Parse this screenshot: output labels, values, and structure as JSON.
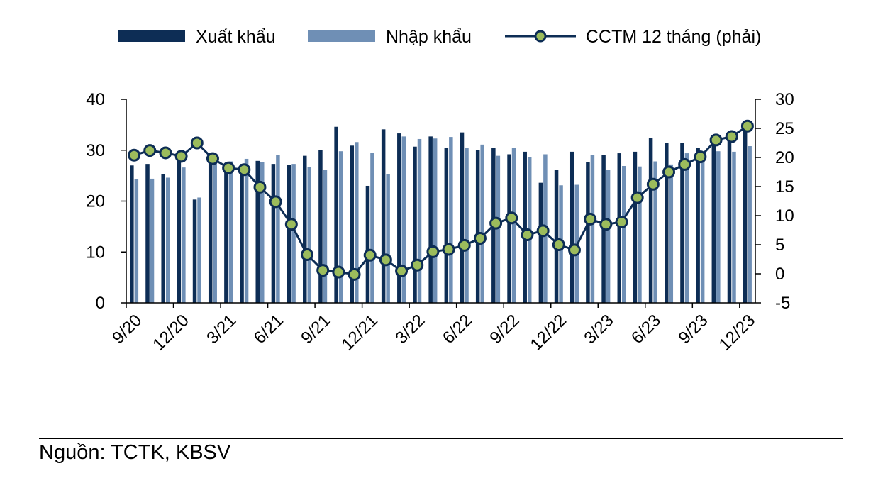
{
  "source_note": "Nguồn: TCTK, KBSV",
  "colors": {
    "export": "#0d2d55",
    "import": "#6f8fb5",
    "line": "#0d2d55",
    "marker_fill": "#9cbc5c",
    "axis": "#000000"
  },
  "chart_data": {
    "type": "bar",
    "legend_position": "top",
    "grid": false,
    "x_tick_labels": [
      "9/20",
      "12/20",
      "3/21",
      "6/21",
      "9/21",
      "12/21",
      "3/22",
      "6/22",
      "9/22",
      "12/22",
      "3/23",
      "6/23",
      "9/23",
      "12/23"
    ],
    "x_tick_every": 3,
    "categories": [
      "9/20",
      "10/20",
      "11/20",
      "12/20",
      "1/21",
      "2/21",
      "3/21",
      "4/21",
      "5/21",
      "6/21",
      "7/21",
      "8/21",
      "9/21",
      "10/21",
      "11/21",
      "12/21",
      "1/22",
      "2/22",
      "3/22",
      "4/22",
      "5/22",
      "6/22",
      "7/22",
      "8/22",
      "9/22",
      "10/22",
      "11/22",
      "12/22",
      "1/23",
      "2/23",
      "3/23",
      "4/23",
      "5/23",
      "6/23",
      "7/23",
      "8/23",
      "9/23",
      "10/23",
      "11/23",
      "12/23"
    ],
    "y_left": {
      "min": 0,
      "max": 40,
      "ticks": [
        0,
        10,
        20,
        30,
        40
      ]
    },
    "y_right": {
      "min": -5,
      "max": 30,
      "ticks": [
        -5,
        0,
        5,
        10,
        15,
        20,
        25,
        30
      ]
    },
    "series": [
      {
        "name": "Xuất khẩu",
        "type": "bar",
        "axis": "left",
        "values": [
          27.0,
          27.3,
          25.3,
          28.6,
          20.3,
          28.5,
          26.1,
          27.3,
          27.9,
          27.3,
          27.1,
          28.9,
          30.0,
          34.6,
          30.9,
          23.0,
          34.1,
          33.3,
          30.7,
          32.7,
          30.4,
          33.5,
          30.1,
          30.4,
          29.2,
          29.7,
          23.6,
          26.1,
          29.7,
          27.6,
          29.1,
          29.4,
          29.7,
          32.4,
          31.4,
          31.4,
          30.4,
          32.7,
          32.9,
          34.2
        ]
      },
      {
        "name": "Nhập khẩu",
        "type": "bar",
        "axis": "left",
        "values": [
          24.3,
          24.4,
          24.6,
          26.6,
          20.7,
          28.2,
          27.8,
          28.3,
          27.7,
          29.1,
          27.3,
          26.7,
          26.2,
          29.8,
          31.6,
          29.5,
          25.3,
          32.7,
          32.2,
          32.3,
          32.6,
          30.4,
          31.1,
          28.9,
          30.4,
          28.7,
          29.2,
          23.1,
          23.2,
          29.1,
          26.2,
          26.9,
          26.8,
          27.8,
          27.2,
          29.4,
          29.2,
          29.8,
          29.7,
          30.8
        ]
      },
      {
        "name": "CCTM 12 tháng (phải)",
        "type": "line",
        "axis": "right",
        "values": [
          20.4,
          21.2,
          20.8,
          20.2,
          22.5,
          19.8,
          18.2,
          17.9,
          14.9,
          12.4,
          8.5,
          3.3,
          0.6,
          0.3,
          -0.1,
          3.2,
          2.4,
          0.5,
          1.5,
          3.8,
          4.2,
          4.9,
          6.1,
          8.7,
          9.6,
          6.7,
          7.4,
          5.0,
          4.1,
          9.4,
          8.5,
          8.9,
          13.1,
          15.4,
          17.5,
          18.8,
          20.1,
          23.0,
          23.6,
          25.4
        ]
      }
    ]
  }
}
